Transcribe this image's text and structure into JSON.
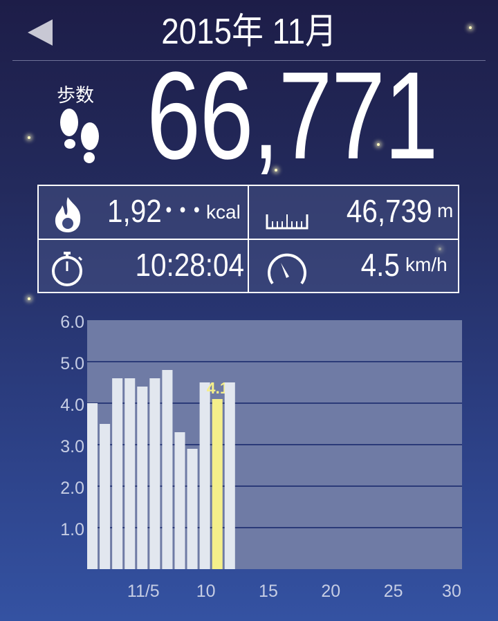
{
  "header": {
    "title": "2015年 11月",
    "back_icon": "back-triangle-icon"
  },
  "steps": {
    "label": "歩数",
    "value": "66,771",
    "icon": "footprints-icon"
  },
  "stats": {
    "calories": {
      "value": "1,92･･･",
      "unit": "kcal",
      "icon": "flame-icon"
    },
    "distance": {
      "value": "46,739",
      "unit": "m",
      "icon": "ruler-icon"
    },
    "time": {
      "value": "10:28:04",
      "icon": "stopwatch-icon"
    },
    "speed": {
      "value": "4.5",
      "unit": "km/h",
      "icon": "speedometer-icon"
    }
  },
  "chart_data": {
    "type": "bar",
    "x": [
      1,
      2,
      3,
      4,
      5,
      6,
      7,
      8,
      9,
      10,
      11,
      12
    ],
    "values": [
      4.0,
      3.5,
      4.6,
      4.6,
      4.4,
      4.6,
      4.8,
      3.3,
      2.9,
      4.5,
      4.1,
      4.5
    ],
    "highlight": {
      "x": 11,
      "label": "4.1",
      "color": "#f5ef8a"
    },
    "bar_color": "#e2e7ef",
    "ylim": [
      0,
      6.0
    ],
    "yticks": [
      "1.0",
      "2.0",
      "3.0",
      "4.0",
      "5.0",
      "6.0"
    ],
    "xlim": [
      1,
      30
    ],
    "xticks": [
      {
        "day": 5,
        "label": "11/5"
      },
      {
        "day": 10,
        "label": "10"
      },
      {
        "day": 15,
        "label": "15"
      },
      {
        "day": 20,
        "label": "20"
      },
      {
        "day": 25,
        "label": "25"
      },
      {
        "day": 30,
        "label": "30"
      }
    ],
    "grid": true
  }
}
